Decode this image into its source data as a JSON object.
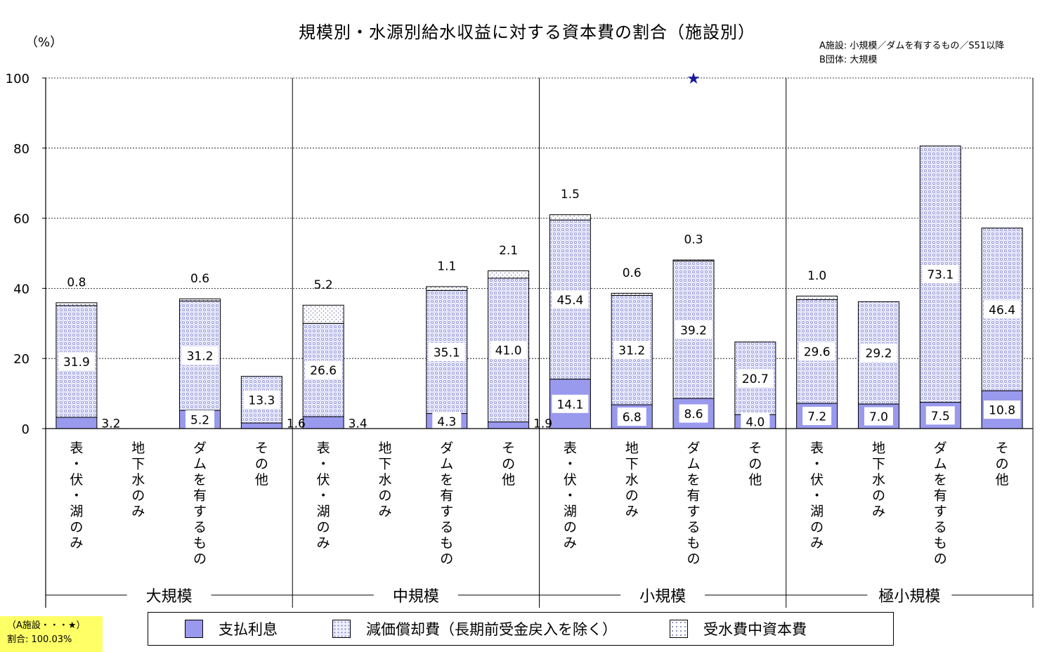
{
  "title": "規模別・水源別給水収益に対する資本費の割合（施設別）",
  "y_unit": "（%）",
  "notes": [
    "A施設: 小規模／ダムを有するもの／S51以降",
    "B団体: 大規模"
  ],
  "marker_label": "（A施設・・・★）",
  "marker_ratio": "割合: 100.03%",
  "colors": {
    "interest": "#9999ee",
    "depreciation_fill": "#eef0ff",
    "depreciation_dot": "#8888cc",
    "received_fill": "#ffffff",
    "received_dot": "#7777aa",
    "star": "#1a1a99",
    "note_box": "#ffff66"
  },
  "chart_data": {
    "type": "bar",
    "stacked": true,
    "ylim": [
      0,
      100
    ],
    "yticks": [
      0,
      20,
      40,
      60,
      80,
      100
    ],
    "grid": true,
    "legend_position": "bottom",
    "groups": [
      "大規模",
      "中規模",
      "小規模",
      "極小規模"
    ],
    "categories": [
      "表・伏・湖のみ",
      "地下水のみ",
      "ダムを有するもの",
      "その他"
    ],
    "series": [
      {
        "name": "支払利息",
        "key": "interest",
        "values": [
          [
            3.2,
            0,
            5.2,
            1.6
          ],
          [
            3.4,
            0,
            4.3,
            1.9
          ],
          [
            14.1,
            6.8,
            8.6,
            4.0
          ],
          [
            7.2,
            7.0,
            7.5,
            10.8
          ]
        ]
      },
      {
        "name": "減価償却費（長期前受金戻入を除く）",
        "key": "depreciation",
        "values": [
          [
            31.9,
            0,
            31.2,
            13.3
          ],
          [
            26.6,
            0,
            35.1,
            41.0
          ],
          [
            45.4,
            31.2,
            39.2,
            20.7
          ],
          [
            29.6,
            29.2,
            73.1,
            46.4
          ]
        ]
      },
      {
        "name": "受水費中資本費",
        "key": "received",
        "values": [
          [
            0.8,
            0,
            0.6,
            0
          ],
          [
            5.2,
            0,
            1.1,
            2.1
          ],
          [
            1.5,
            0.6,
            0.3,
            0
          ],
          [
            1.0,
            0,
            0,
            0
          ]
        ]
      }
    ],
    "labels": {
      "interest": [
        [
          "3.2",
          "",
          "5.2",
          "1.6"
        ],
        [
          "3.4",
          "",
          "4.3",
          "1.9"
        ],
        [
          "14.1",
          "6.8",
          "8.6",
          "4.0"
        ],
        [
          "7.2",
          "7.0",
          "7.5",
          "10.8"
        ]
      ],
      "depreciation": [
        [
          "31.9",
          "",
          "31.2",
          "13.3"
        ],
        [
          "26.6",
          "",
          "35.1",
          "41.0"
        ],
        [
          "45.4",
          "31.2",
          "39.2",
          "20.7"
        ],
        [
          "29.6",
          "29.2",
          "73.1",
          "46.4"
        ]
      ],
      "received": [
        [
          "0.8",
          "",
          "0.6",
          ""
        ],
        [
          "5.2",
          "",
          "1.1",
          "2.1"
        ],
        [
          "1.5",
          "0.6",
          "0.3",
          ""
        ],
        [
          "1.0",
          "",
          "",
          ""
        ]
      ]
    },
    "marker": {
      "symbol": "★",
      "group": "小規模",
      "category": "ダムを有するもの",
      "value": 100.03
    }
  }
}
